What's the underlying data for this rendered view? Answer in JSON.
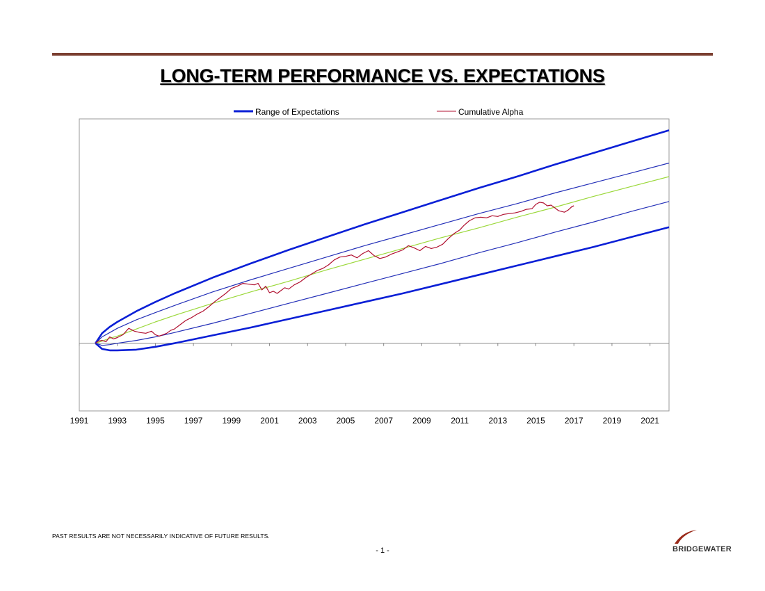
{
  "page": {
    "title": "LONG-TERM PERFORMANCE VS. EXPECTATIONS",
    "disclaimer": "PAST RESULTS ARE NOT NECESSARILY INDICATIVE OF FUTURE RESULTS.",
    "page_number": "- 1 -",
    "logo_text": "BRIDGEWATER"
  },
  "colors": {
    "range_outer": "#0a1fd6",
    "range_inner": "#2430b8",
    "expected": "#9bd83a",
    "alpha": "#b01030",
    "zero_line": "#8a8a8a",
    "frame": "#999999",
    "top_rule": "#7a3e30"
  },
  "chart_data": {
    "type": "line",
    "title": "LONG-TERM PERFORMANCE VS. EXPECTATIONS",
    "xlabel": "",
    "ylabel": "",
    "xlim": [
      1991,
      2022
    ],
    "ylim": [
      -0.95,
      3.15
    ],
    "x_ticks": [
      1991,
      1993,
      1995,
      1997,
      1999,
      2001,
      2003,
      2005,
      2007,
      2009,
      2011,
      2013,
      2015,
      2017,
      2019,
      2021
    ],
    "y_tick_labels_shown": false,
    "grid": false,
    "legend_position": "top",
    "legend": [
      {
        "label": "Range of Expectations",
        "style": "thick-blue"
      },
      {
        "label": "Cumulative Alpha",
        "style": "thin-red"
      }
    ],
    "bands": {
      "start_x": 1991.85,
      "x": [
        1991.85,
        1992.2,
        1992.6,
        1993.0,
        1994.0,
        1995.0,
        1996.0,
        1998.0,
        2000.0,
        2002.0,
        2004.0,
        2006.0,
        2008.0,
        2010.0,
        2012.0,
        2014.0,
        2016.0,
        2018.0,
        2020.0,
        2022.0
      ],
      "outer_upper": [
        0.0,
        0.14,
        0.23,
        0.3,
        0.45,
        0.58,
        0.7,
        0.92,
        1.12,
        1.31,
        1.49,
        1.67,
        1.84,
        2.01,
        2.18,
        2.34,
        2.51,
        2.67,
        2.83,
        2.99
      ],
      "inner_upper": [
        0.0,
        0.09,
        0.15,
        0.21,
        0.33,
        0.43,
        0.53,
        0.72,
        0.89,
        1.05,
        1.21,
        1.37,
        1.52,
        1.67,
        1.82,
        1.96,
        2.11,
        2.25,
        2.39,
        2.53
      ],
      "expected": [
        0.0,
        0.03,
        0.07,
        0.1,
        0.2,
        0.3,
        0.39,
        0.56,
        0.72,
        0.87,
        1.03,
        1.18,
        1.33,
        1.48,
        1.62,
        1.77,
        1.91,
        2.06,
        2.2,
        2.34
      ],
      "inner_lower": [
        0.0,
        -0.03,
        -0.02,
        0.0,
        0.04,
        0.09,
        0.15,
        0.28,
        0.42,
        0.56,
        0.7,
        0.84,
        0.98,
        1.12,
        1.27,
        1.41,
        1.56,
        1.7,
        1.85,
        1.99
      ],
      "outer_lower": [
        0.0,
        -0.08,
        -0.1,
        -0.1,
        -0.09,
        -0.05,
        0.0,
        0.11,
        0.22,
        0.34,
        0.46,
        0.58,
        0.7,
        0.83,
        0.96,
        1.09,
        1.22,
        1.35,
        1.49,
        1.63
      ]
    },
    "series": [
      {
        "name": "Cumulative Alpha",
        "x": [
          1991.85,
          1992.0,
          1992.2,
          1992.4,
          1992.6,
          1992.8,
          1993.0,
          1993.3,
          1993.6,
          1993.9,
          1994.2,
          1994.5,
          1994.8,
          1995.0,
          1995.2,
          1995.4,
          1995.6,
          1995.8,
          1996.0,
          1996.3,
          1996.6,
          1996.9,
          1997.2,
          1997.5,
          1997.8,
          1998.1,
          1998.4,
          1998.7,
          1999.0,
          1999.3,
          1999.6,
          1999.9,
          2000.2,
          2000.4,
          2000.6,
          2000.8,
          2001.0,
          2001.2,
          2001.4,
          2001.6,
          2001.8,
          2002.0,
          2002.3,
          2002.6,
          2002.9,
          2003.2,
          2003.5,
          2003.8,
          2004.1,
          2004.4,
          2004.7,
          2005.0,
          2005.3,
          2005.6,
          2005.9,
          2006.2,
          2006.5,
          2006.8,
          2007.1,
          2007.4,
          2007.7,
          2008.0,
          2008.3,
          2008.6,
          2008.9,
          2009.2,
          2009.5,
          2009.8,
          2010.1,
          2010.4,
          2010.7,
          2011.0,
          2011.2,
          2011.5,
          2011.8,
          2012.1,
          2012.4,
          2012.7,
          2013.0,
          2013.3,
          2013.6,
          2013.9,
          2014.2,
          2014.5,
          2014.8,
          2015.0,
          2015.2,
          2015.4,
          2015.6,
          2015.8,
          2016.0,
          2016.2,
          2016.5,
          2016.7,
          2016.9,
          2017.0
        ],
        "y": [
          0.0,
          0.03,
          0.04,
          0.02,
          0.09,
          0.06,
          0.08,
          0.12,
          0.21,
          0.17,
          0.15,
          0.14,
          0.17,
          0.12,
          0.1,
          0.12,
          0.14,
          0.18,
          0.2,
          0.26,
          0.32,
          0.36,
          0.41,
          0.45,
          0.51,
          0.58,
          0.64,
          0.7,
          0.77,
          0.8,
          0.84,
          0.83,
          0.82,
          0.84,
          0.75,
          0.8,
          0.71,
          0.73,
          0.7,
          0.74,
          0.78,
          0.76,
          0.82,
          0.86,
          0.92,
          0.97,
          1.02,
          1.05,
          1.1,
          1.17,
          1.21,
          1.22,
          1.24,
          1.2,
          1.26,
          1.3,
          1.23,
          1.19,
          1.21,
          1.25,
          1.28,
          1.31,
          1.37,
          1.34,
          1.3,
          1.36,
          1.33,
          1.35,
          1.39,
          1.47,
          1.54,
          1.59,
          1.65,
          1.72,
          1.76,
          1.77,
          1.76,
          1.79,
          1.78,
          1.81,
          1.82,
          1.83,
          1.85,
          1.88,
          1.89,
          1.95,
          1.98,
          1.97,
          1.93,
          1.94,
          1.9,
          1.86,
          1.84,
          1.87,
          1.92,
          1.93
        ]
      }
    ]
  }
}
